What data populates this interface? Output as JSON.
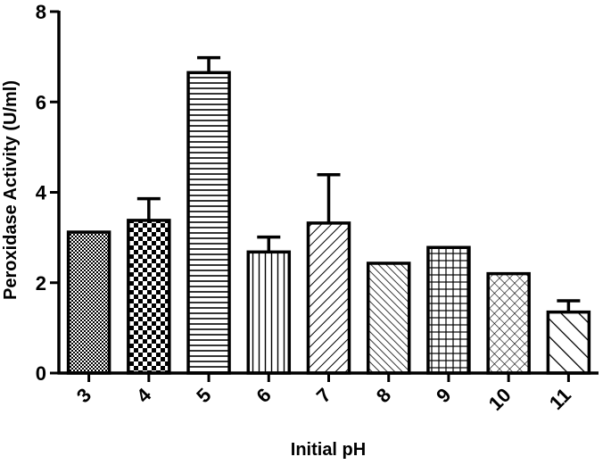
{
  "chart_data": {
    "type": "bar",
    "xlabel": "Initial pH",
    "ylabel": "Peroxidase Activity (U/ml)",
    "ylim": [
      0,
      8
    ],
    "yticks": [
      "0",
      "2",
      "4",
      "6",
      "8"
    ],
    "categories": [
      "3",
      "4",
      "5",
      "6",
      "7",
      "8",
      "9",
      "10",
      "11"
    ],
    "values": [
      3.12,
      3.38,
      6.65,
      2.68,
      3.32,
      2.43,
      2.78,
      2.2,
      1.35
    ],
    "errors": [
      0.0,
      0.48,
      0.33,
      0.33,
      1.07,
      0.0,
      0.0,
      0.0,
      0.25
    ],
    "patterns": [
      "fine-dots",
      "checker",
      "horizontal-lines",
      "vertical-lines",
      "diagonal-up",
      "diagonal-down",
      "grid",
      "crosshatch",
      "wide-diagonal-down"
    ],
    "grid": false,
    "legend": false
  }
}
